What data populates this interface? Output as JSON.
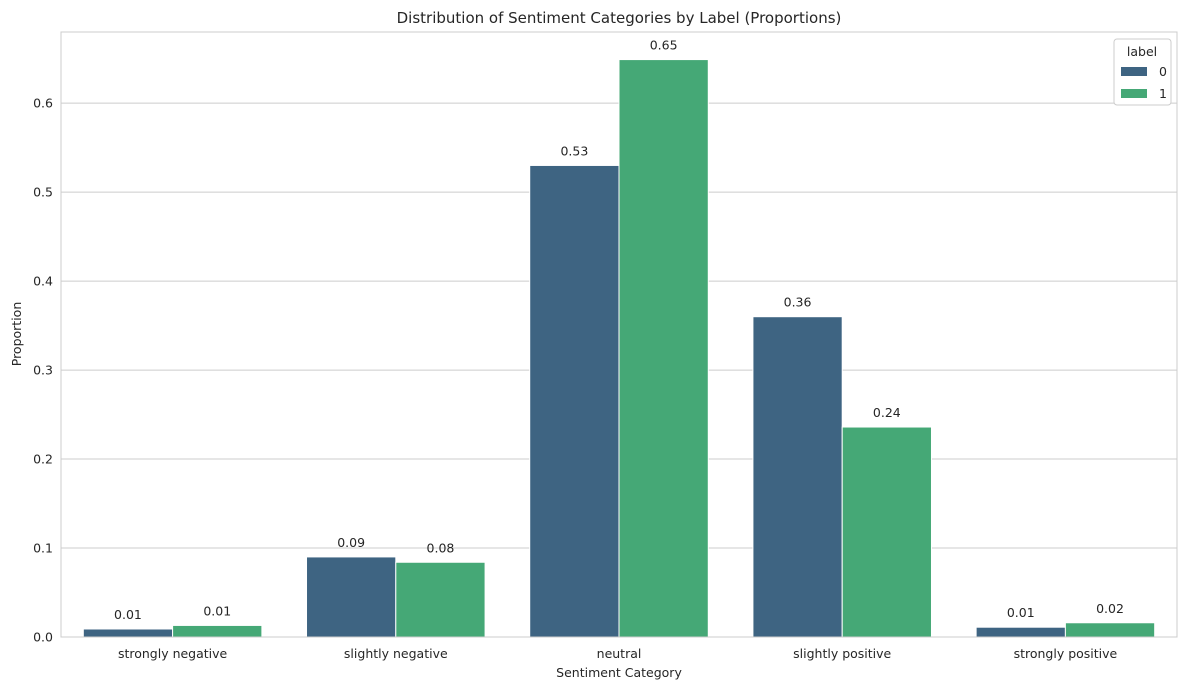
{
  "chart_data": {
    "type": "bar",
    "title": "Distribution of Sentiment Categories by Label (Proportions)",
    "xlabel": "Sentiment Category",
    "ylabel": "Proportion",
    "categories": [
      "strongly negative",
      "slightly negative",
      "neutral",
      "slightly positive",
      "strongly positive"
    ],
    "series": [
      {
        "name": "0",
        "color": "#3e6482",
        "values": [
          0.009,
          0.09,
          0.53,
          0.36,
          0.011
        ],
        "labels": [
          "0.01",
          "0.09",
          "0.53",
          "0.36",
          "0.01"
        ]
      },
      {
        "name": "1",
        "color": "#45a876",
        "values": [
          0.013,
          0.084,
          0.649,
          0.236,
          0.016
        ],
        "labels": [
          "0.01",
          "0.08",
          "0.65",
          "0.24",
          "0.02"
        ]
      }
    ],
    "ylim": [
      0,
      0.68
    ],
    "yticks": [
      0.0,
      0.1,
      0.2,
      0.3,
      0.4,
      0.5,
      0.6
    ],
    "ytick_labels": [
      "0.0",
      "0.1",
      "0.2",
      "0.3",
      "0.4",
      "0.5",
      "0.6"
    ],
    "grid": "horizontal",
    "legend": {
      "title": "label",
      "placement": "top-right"
    }
  }
}
